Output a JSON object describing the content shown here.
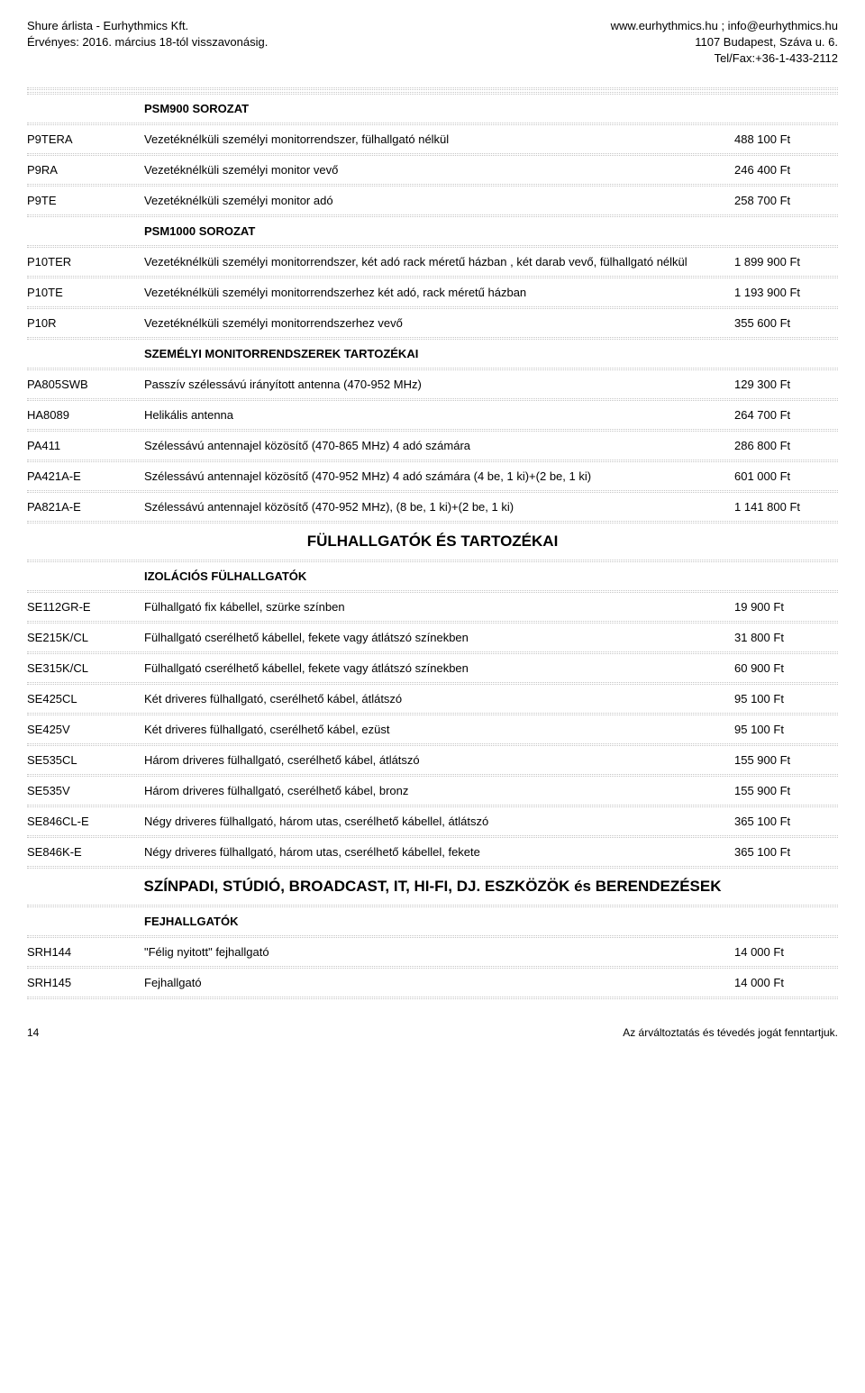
{
  "header": {
    "left_line1": "Shure árlista - Eurhythmics Kft.",
    "left_line2": "Érvényes: 2016. március 18-tól visszavonásig.",
    "right_line1": "www.eurhythmics.hu ; info@eurhythmics.hu",
    "right_line2": "1107 Budapest, Száva u. 6.",
    "right_line3": "Tel/Fax:+36-1-433-2112"
  },
  "sections": [
    {
      "type": "heading2",
      "text": "PSM900 SOROZAT"
    },
    {
      "type": "item",
      "code": "P9TERA",
      "desc": "Vezetéknélküli személyi monitorrendszer, fülhallgató nélkül",
      "price": "488 100 Ft"
    },
    {
      "type": "item",
      "code": "P9RA",
      "desc": "Vezetéknélküli személyi monitor vevő",
      "price": "246 400 Ft"
    },
    {
      "type": "item",
      "code": "P9TE",
      "desc": "Vezetéknélküli személyi monitor adó",
      "price": "258 700 Ft"
    },
    {
      "type": "heading2",
      "text": "PSM1000 SOROZAT"
    },
    {
      "type": "item",
      "code": "P10TER",
      "desc": "Vezetéknélküli személyi monitorrendszer, két adó rack méretű házban , két darab vevő, fülhallgató nélkül",
      "price": "1 899 900 Ft"
    },
    {
      "type": "item",
      "code": "P10TE",
      "desc": "Vezetéknélküli személyi monitorrendszerhez két adó, rack méretű házban",
      "price": "1 193 900 Ft"
    },
    {
      "type": "item",
      "code": "P10R",
      "desc": "Vezetéknélküli személyi monitorrendszerhez vevő",
      "price": "355 600 Ft"
    },
    {
      "type": "heading2",
      "text": "SZEMÉLYI MONITORRENDSZEREK TARTOZÉKAI"
    },
    {
      "type": "item",
      "code": "PA805SWB",
      "desc": "Passzív szélessávú irányított antenna (470-952 MHz)",
      "price": "129 300 Ft"
    },
    {
      "type": "item",
      "code": "HA8089",
      "desc": "Helikális antenna",
      "price": "264 700 Ft"
    },
    {
      "type": "item",
      "code": "PA411",
      "desc": "Szélessávú antennajel közösítő (470-865 MHz) 4 adó számára",
      "price": "286 800 Ft"
    },
    {
      "type": "item",
      "code": "PA421A-E",
      "desc": "Szélessávú antennajel közösítő (470-952 MHz)  4 adó számára  (4 be, 1 ki)+(2 be, 1 ki)",
      "price": "601 000 Ft"
    },
    {
      "type": "item",
      "code": "PA821A-E",
      "desc": "Szélessávú antennajel közösítő (470-952 MHz), (8 be, 1 ki)+(2 be, 1 ki)",
      "price": "1 141 800 Ft"
    },
    {
      "type": "heading1",
      "text": "FÜLHALLGATÓK ÉS TARTOZÉKAI"
    },
    {
      "type": "heading2",
      "text": "IZOLÁCIÓS FÜLHALLGATÓK"
    },
    {
      "type": "item",
      "code": "SE112GR-E",
      "desc": "Fülhallgató fix kábellel, szürke színben",
      "price": "19 900 Ft"
    },
    {
      "type": "item",
      "code": "SE215K/CL",
      "desc": "Fülhallgató cserélhető kábellel, fekete vagy átlátszó színekben",
      "price": "31 800 Ft"
    },
    {
      "type": "item",
      "code": "SE315K/CL",
      "desc": "Fülhallgató cserélhető kábellel, fekete vagy átlátszó színekben",
      "price": "60 900 Ft"
    },
    {
      "type": "item",
      "code": "SE425CL",
      "desc": "Két driveres fülhallgató, cserélhető kábel, átlátszó",
      "price": "95 100 Ft"
    },
    {
      "type": "item",
      "code": "SE425V",
      "desc": "Két driveres fülhallgató, cserélhető kábel, ezüst",
      "price": "95 100 Ft"
    },
    {
      "type": "item",
      "code": "SE535CL",
      "desc": "Három driveres fülhallgató, cserélhető kábel, átlátszó",
      "price": "155 900 Ft"
    },
    {
      "type": "item",
      "code": "SE535V",
      "desc": "Három driveres fülhallgató, cserélhető kábel, bronz",
      "price": "155 900 Ft"
    },
    {
      "type": "item",
      "code": "SE846CL-E",
      "desc": "Négy driveres fülhallgató, három utas, cserélhető kábellel, átlátszó",
      "price": "365 100 Ft"
    },
    {
      "type": "item",
      "code": "SE846K-E",
      "desc": "Négy driveres fülhallgató, három utas, cserélhető kábellel, fekete",
      "price": "365 100 Ft"
    },
    {
      "type": "heading1",
      "text": "SZÍNPADI, STÚDIÓ, BROADCAST, IT, HI-FI,  DJ. ESZKÖZÖK és BERENDEZÉSEK"
    },
    {
      "type": "heading2",
      "text": "FEJHALLGATÓK"
    },
    {
      "type": "item",
      "code": "SRH144",
      "desc": "\"Félig nyitott\" fejhallgató",
      "price": "14 000 Ft"
    },
    {
      "type": "item",
      "code": "SRH145",
      "desc": "Fejhallgató",
      "price": "14 000 Ft"
    }
  ],
  "footer": {
    "page": "14",
    "note": "Az árváltoztatás és tévedés jogát fenntartjuk."
  }
}
